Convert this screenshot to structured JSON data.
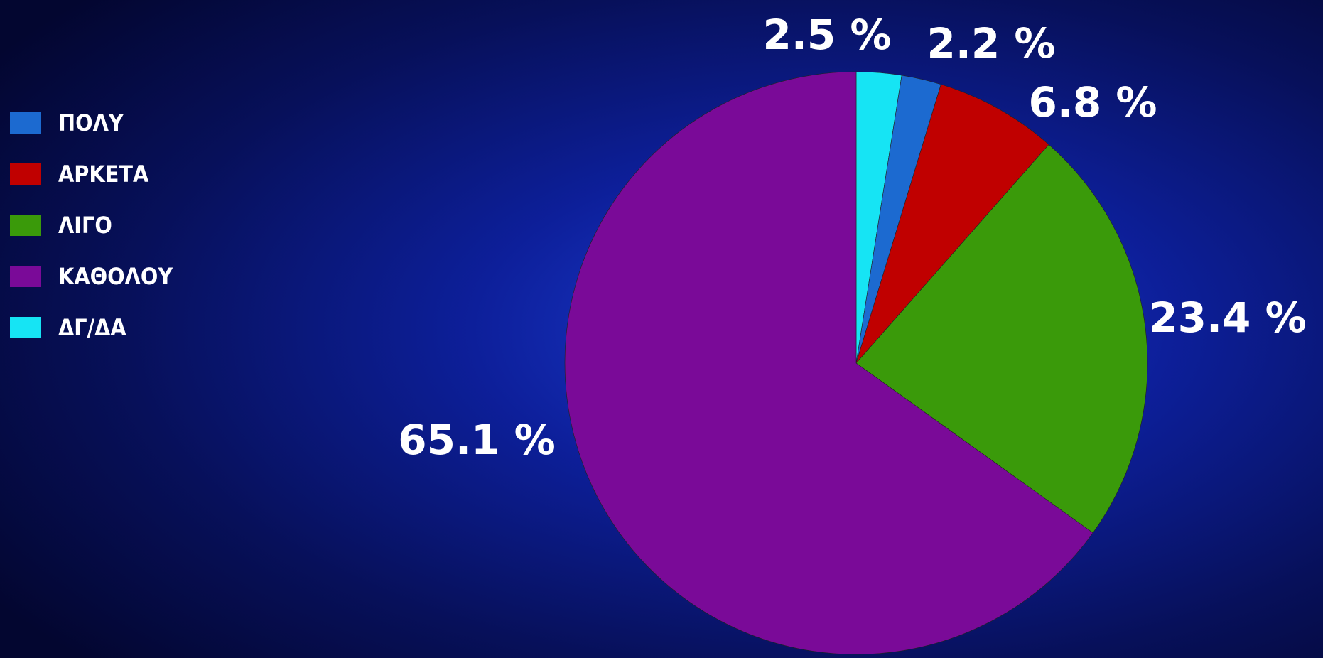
{
  "chart_data": {
    "type": "pie",
    "categories": [
      "ΠΟΛΥ",
      "ΑΡΚΕΤΑ",
      "ΛΙΓΟ",
      "ΚΑΘΟΛΟΥ",
      "ΔΓ/ΔΑ"
    ],
    "values": [
      2.2,
      6.8,
      23.4,
      65.1,
      2.5
    ],
    "value_labels": [
      "2.2 %",
      "6.8 %",
      "23.4 %",
      "65.1 %",
      "2.5 %"
    ],
    "colors": [
      "#1c6ad0",
      "#c00000",
      "#3a9a0a",
      "#7a0a98",
      "#16e4f4"
    ],
    "legend": "top-left"
  }
}
